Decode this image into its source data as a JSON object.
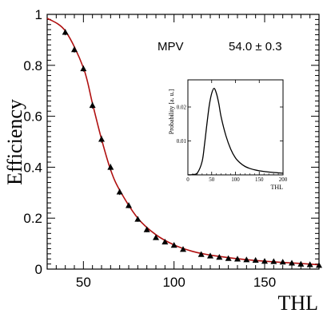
{
  "chart_data": {
    "type": "scatter",
    "xlabel": "THL",
    "ylabel": "Efficiency",
    "xlim": [
      30,
      180
    ],
    "ylim": [
      0,
      1
    ],
    "x_ticks": [
      50,
      100,
      150
    ],
    "y_ticks": [
      0,
      0.2,
      0.4,
      0.6,
      0.8,
      1
    ],
    "series": [
      {
        "style": "points-with-errorbars",
        "marker": "triangle",
        "color": "#000000",
        "x": [
          40,
          45,
          50,
          55,
          60,
          65,
          70,
          75,
          80,
          85,
          90,
          95,
          100,
          105,
          115,
          120,
          125,
          130,
          135,
          140,
          145,
          150,
          155,
          160,
          165,
          170,
          175,
          180
        ],
        "y": [
          0.93,
          0.862,
          0.787,
          0.643,
          0.51,
          0.4,
          0.303,
          0.25,
          0.196,
          0.155,
          0.124,
          0.107,
          0.094,
          0.078,
          0.058,
          0.052,
          0.047,
          0.042,
          0.04,
          0.037,
          0.035,
          0.031,
          0.03,
          0.028,
          0.024,
          0.02,
          0.018,
          0.015
        ],
        "yerr": [
          0.012,
          0.012,
          0.012,
          0.013,
          0.014,
          0.013,
          0.012,
          0.011,
          0.01,
          0.01,
          0.009,
          0.009,
          0.008,
          0.007,
          0.006,
          0.006,
          0.005,
          0.005,
          0.005,
          0.005,
          0.004,
          0.004,
          0.004,
          0.004,
          0.004,
          0.004,
          0.004,
          0.004
        ]
      },
      {
        "style": "fit-curve",
        "color": "#b01010",
        "x": [
          30,
          40,
          50,
          55,
          60,
          65,
          70,
          80,
          90,
          100,
          110,
          120,
          130,
          140,
          150,
          160,
          170,
          180
        ],
        "y": [
          0.985,
          0.935,
          0.79,
          0.65,
          0.51,
          0.39,
          0.31,
          0.2,
          0.135,
          0.095,
          0.07,
          0.055,
          0.045,
          0.037,
          0.031,
          0.026,
          0.022,
          0.017
        ]
      }
    ],
    "annotation": {
      "label": "MPV",
      "value": "54.0 ±  0.3"
    },
    "inset": {
      "type": "line",
      "xlabel": "THL",
      "ylabel": "Probability [a. u.]",
      "xlim": [
        0,
        200
      ],
      "ylim": [
        0,
        0.028
      ],
      "x_ticks": [
        0,
        50,
        100,
        150,
        200
      ],
      "y_ticks": [
        0.01,
        0.02
      ],
      "x": [
        0,
        10,
        20,
        30,
        35,
        40,
        45,
        50,
        55,
        60,
        65,
        70,
        80,
        90,
        100,
        110,
        120,
        130,
        140,
        150,
        160,
        180,
        200
      ],
      "y": [
        0,
        0.0001,
        0.0006,
        0.004,
        0.009,
        0.015,
        0.0205,
        0.024,
        0.0255,
        0.024,
        0.021,
        0.017,
        0.0115,
        0.0076,
        0.005,
        0.0035,
        0.0025,
        0.0019,
        0.0015,
        0.0012,
        0.001,
        0.0007,
        0.0005
      ]
    }
  }
}
